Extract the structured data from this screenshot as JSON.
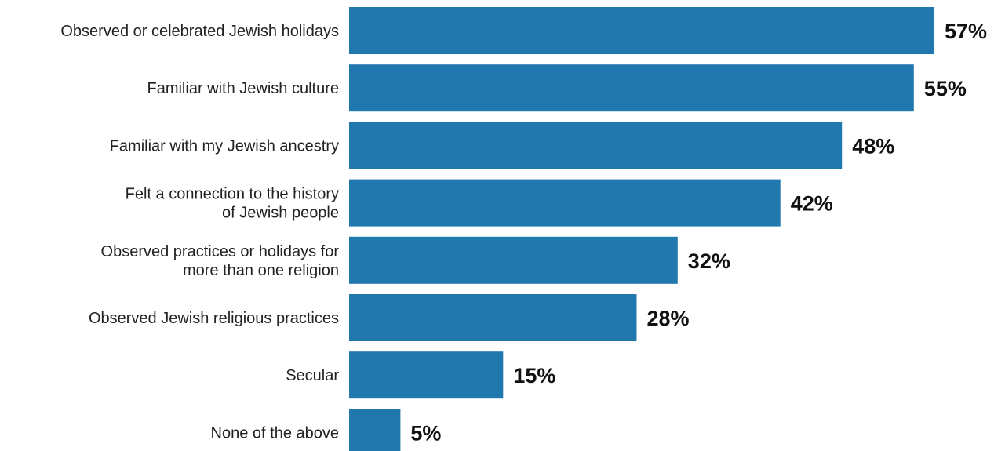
{
  "chart_data": {
    "type": "bar",
    "orientation": "horizontal",
    "categories": [
      "Observed or celebrated Jewish holidays",
      "Familiar with Jewish culture",
      "Familiar with my Jewish ancestry",
      "Felt a connection to the history of Jewish people",
      "Observed practices or holidays for more than one religion",
      "Observed Jewish religious practices",
      "Secular",
      "None of the above"
    ],
    "category_lines": [
      [
        "Observed or celebrated Jewish holidays"
      ],
      [
        "Familiar with Jewish culture"
      ],
      [
        "Familiar with my Jewish ancestry"
      ],
      [
        "Felt a connection to the history",
        "of Jewish people"
      ],
      [
        "Observed practices or holidays for",
        "more than one religion"
      ],
      [
        "Observed Jewish religious practices"
      ],
      [
        "Secular"
      ],
      [
        "None of the above"
      ]
    ],
    "values": [
      57,
      55,
      48,
      42,
      32,
      28,
      15,
      5
    ],
    "value_labels": [
      "57%",
      "55%",
      "48%",
      "42%",
      "32%",
      "28%",
      "15%",
      "5%"
    ],
    "unit": "%",
    "xlim": [
      0,
      57
    ],
    "grid": false,
    "bar_color": "#2078ae"
  }
}
